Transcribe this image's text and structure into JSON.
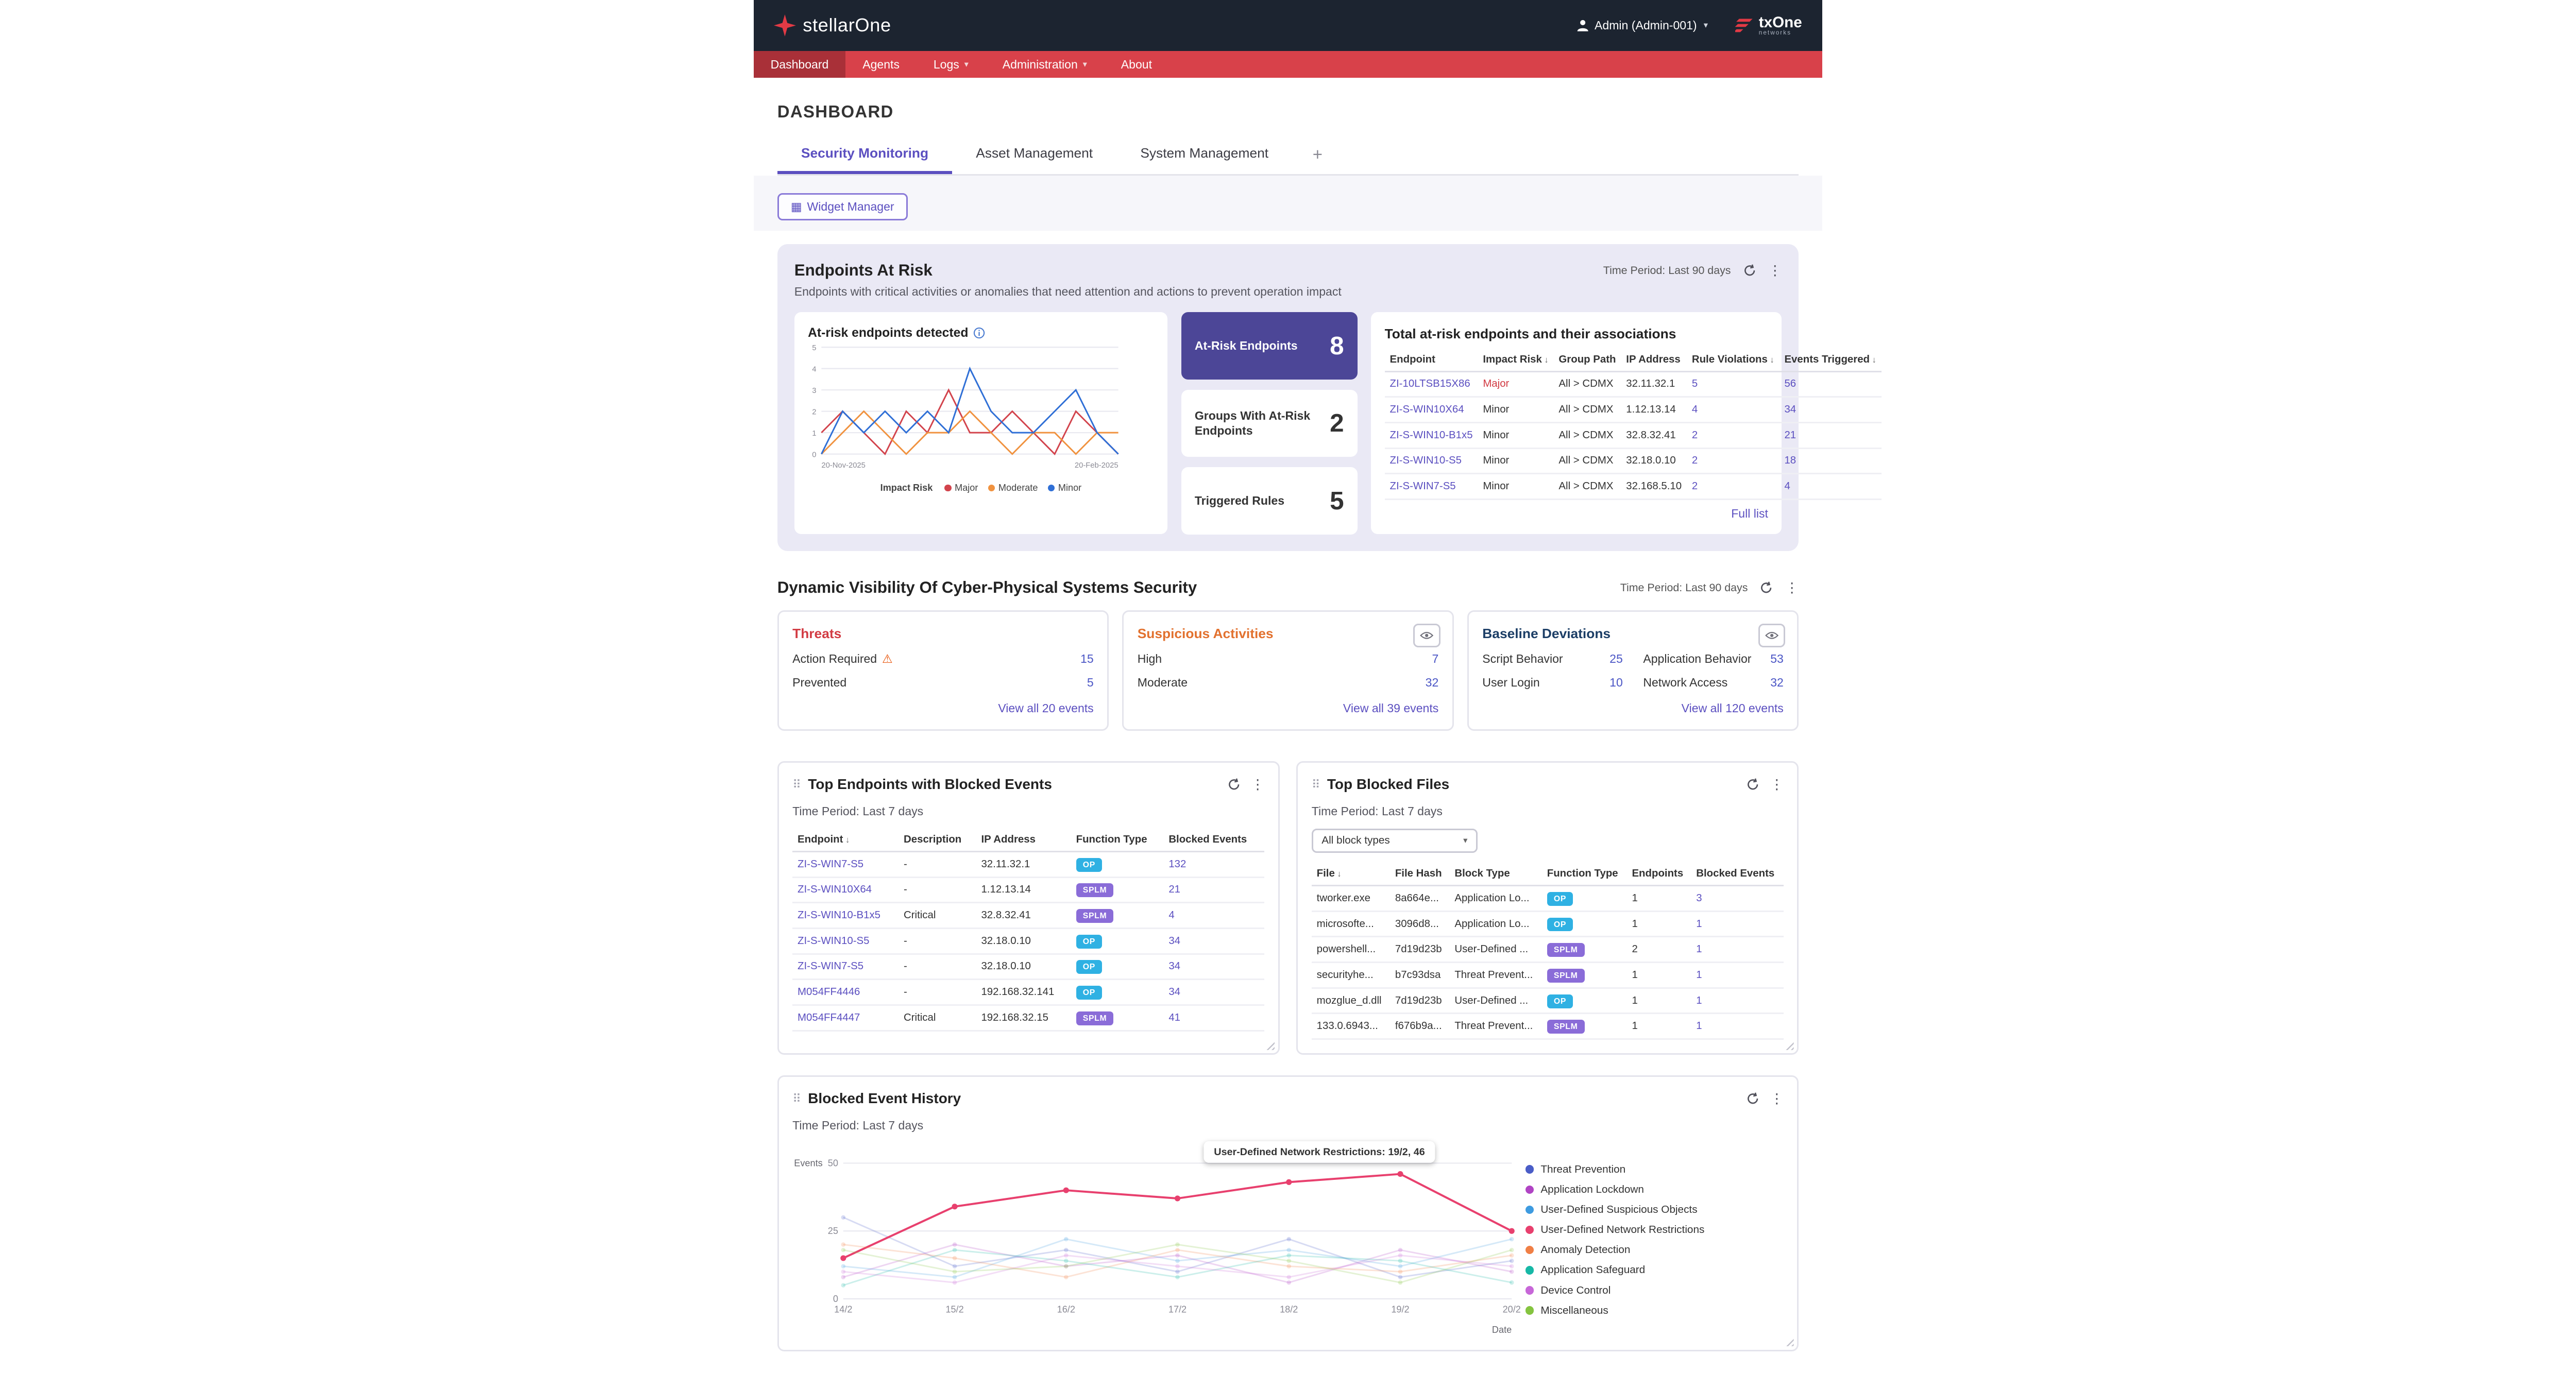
{
  "topbar": {
    "brand": "stellarOne",
    "user_label": "Admin (Admin-001)",
    "vendor_name": "txOne",
    "vendor_sub": "networks"
  },
  "nav": {
    "items": [
      {
        "label": "Dashboard",
        "active": true,
        "dropdown": false
      },
      {
        "label": "Agents",
        "active": false,
        "dropdown": false
      },
      {
        "label": "Logs",
        "active": false,
        "dropdown": true
      },
      {
        "label": "Administration",
        "active": false,
        "dropdown": true
      },
      {
        "label": "About",
        "active": false,
        "dropdown": false
      }
    ]
  },
  "page": {
    "title": "DASHBOARD"
  },
  "tabs": {
    "items": [
      {
        "label": "Security Monitoring",
        "active": true
      },
      {
        "label": "Asset Management",
        "active": false
      },
      {
        "label": "System Management",
        "active": false
      }
    ],
    "add_label": "+"
  },
  "toolbar": {
    "widget_manager_label": "Widget Manager"
  },
  "endpoints_at_risk": {
    "title": "Endpoints At Risk",
    "subtitle": "Endpoints with critical activities or anomalies that need attention and actions to prevent operation impact",
    "time_period": "Time Period: Last 90 days",
    "detected_title": "At-risk endpoints detected",
    "stats": [
      {
        "label": "At-Risk Endpoints",
        "value": "8",
        "active": true
      },
      {
        "label": "Groups With At-Risk Endpoints",
        "value": "2",
        "active": false
      },
      {
        "label": "Triggered Rules",
        "value": "5",
        "active": false
      }
    ],
    "associations": {
      "title": "Total at-risk endpoints and their associations",
      "columns": [
        "Endpoint",
        "Impact Risk",
        "Group Path",
        "IP Address",
        "Rule Violations",
        "Events Triggered"
      ],
      "sorted_column_indexes": [
        1,
        4,
        5
      ],
      "rows": [
        {
          "endpoint": "ZI-10LTSB15X86",
          "impact_risk": "Major",
          "group_path": "All > CDMX",
          "ip": "32.11.32.1",
          "rule_violations": "5",
          "events_triggered": "56"
        },
        {
          "endpoint": "ZI-S-WIN10X64",
          "impact_risk": "Minor",
          "group_path": "All > CDMX",
          "ip": "1.12.13.14",
          "rule_violations": "4",
          "events_triggered": "34"
        },
        {
          "endpoint": "ZI-S-WIN10-B1x5",
          "impact_risk": "Minor",
          "group_path": "All > CDMX",
          "ip": "32.8.32.41",
          "rule_violations": "2",
          "events_triggered": "21"
        },
        {
          "endpoint": "ZI-S-WIN10-S5",
          "impact_risk": "Minor",
          "group_path": "All > CDMX",
          "ip": "32.18.0.10",
          "rule_violations": "2",
          "events_triggered": "18"
        },
        {
          "endpoint": "ZI-S-WIN7-S5",
          "impact_risk": "Minor",
          "group_path": "All > CDMX",
          "ip": "32.168.5.10",
          "rule_violations": "2",
          "events_triggered": "4"
        }
      ],
      "full_list_label": "Full list"
    }
  },
  "dynamic_visibility": {
    "title": "Dynamic Visibility Of Cyber-Physical Systems Security",
    "time_period": "Time Period: Last 90 days",
    "threats": {
      "title": "Threats",
      "rows": [
        {
          "label": "Action Required",
          "value": "15",
          "warning": true
        },
        {
          "label": "Prevented",
          "value": "5",
          "warning": false
        }
      ],
      "view_all_label": "View all 20 events"
    },
    "suspicious": {
      "title": "Suspicious Activities",
      "rows": [
        {
          "label": "High",
          "value": "7",
          "warning": false
        },
        {
          "label": "Moderate",
          "value": "32",
          "warning": false
        }
      ],
      "view_all_label": "View all 39 events"
    },
    "baseline": {
      "title": "Baseline Deviations",
      "rows": [
        {
          "label": "Script Behavior",
          "value": "25",
          "warning": false
        },
        {
          "label": "Application Behavior",
          "value": "53",
          "warning": false
        },
        {
          "label": "User Login",
          "value": "10",
          "warning": false
        },
        {
          "label": "Network Access",
          "value": "32",
          "warning": false
        }
      ],
      "view_all_label": "View all 120 events"
    }
  },
  "top_endpoints": {
    "title": "Top Endpoints with Blocked Events",
    "time_period": "Time Period: Last 7 days",
    "columns": [
      "Endpoint",
      "Description",
      "IP Address",
      "Function Type",
      "Blocked Events"
    ],
    "sorted_column_indexes": [
      0
    ],
    "rows": [
      {
        "endpoint": "ZI-S-WIN7-S5",
        "description": "-",
        "ip": "32.11.32.1",
        "function_type": "OP",
        "blocked_events": "132"
      },
      {
        "endpoint": "ZI-S-WIN10X64",
        "description": "-",
        "ip": "1.12.13.14",
        "function_type": "SPLM",
        "blocked_events": "21"
      },
      {
        "endpoint": "ZI-S-WIN10-B1x5",
        "description": "Critical",
        "ip": "32.8.32.41",
        "function_type": "SPLM",
        "blocked_events": "4"
      },
      {
        "endpoint": "ZI-S-WIN10-S5",
        "description": "-",
        "ip": "32.18.0.10",
        "function_type": "OP",
        "blocked_events": "34"
      },
      {
        "endpoint": "ZI-S-WIN7-S5",
        "description": "-",
        "ip": "32.18.0.10",
        "function_type": "OP",
        "blocked_events": "34"
      },
      {
        "endpoint": "M054FF4446",
        "description": "-",
        "ip": "192.168.32.141",
        "function_type": "OP",
        "blocked_events": "34"
      },
      {
        "endpoint": "M054FF4447",
        "description": "Critical",
        "ip": "192.168.32.15",
        "function_type": "SPLM",
        "blocked_events": "41"
      }
    ]
  },
  "top_blocked_files": {
    "title": "Top Blocked Files",
    "time_period": "Time Period: Last 7 days",
    "filter_value": "All block types",
    "columns": [
      "File",
      "File Hash",
      "Block Type",
      "Function Type",
      "Endpoints",
      "Blocked Events"
    ],
    "sorted_column_indexes": [
      0
    ],
    "rows": [
      {
        "file": "tworker.exe",
        "hash": "8a664e...",
        "block_type": "Application Lo...",
        "function_type": "OP",
        "endpoints": "1",
        "blocked_events": "3"
      },
      {
        "file": "microsofte...",
        "hash": "3096d8...",
        "block_type": "Application Lo...",
        "function_type": "OP",
        "endpoints": "1",
        "blocked_events": "1"
      },
      {
        "file": "powershell...",
        "hash": "7d19d23b",
        "block_type": "User-Defined ...",
        "function_type": "SPLM",
        "endpoints": "2",
        "blocked_events": "1"
      },
      {
        "file": "securityhe...",
        "hash": "b7c93dsa",
        "block_type": "Threat Prevent...",
        "function_type": "SPLM",
        "endpoints": "1",
        "blocked_events": "1"
      },
      {
        "file": "mozglue_d.dll",
        "hash": "7d19d23b",
        "block_type": "User-Defined ...",
        "function_type": "OP",
        "endpoints": "1",
        "blocked_events": "1"
      },
      {
        "file": "133.0.6943...",
        "hash": "f676b9a...",
        "block_type": "Threat Prevent...",
        "function_type": "SPLM",
        "endpoints": "1",
        "blocked_events": "1"
      }
    ]
  },
  "blocked_event_history": {
    "title": "Blocked Event History",
    "time_period": "Time Period: Last 7 days",
    "tooltip_text": "User-Defined Network Restrictions: 19/2, 46"
  },
  "chart_data": [
    {
      "type": "line",
      "title": "At-risk endpoints detected",
      "legend_title": "Impact Risk",
      "x_end_labels": [
        "20-Nov-2025",
        "20-Feb-2025"
      ],
      "ylim": [
        0,
        5
      ],
      "yticks": [
        0,
        1,
        2,
        3,
        4,
        5
      ],
      "grid": true,
      "series": [
        {
          "name": "Major",
          "color": "#d2434c",
          "values": [
            1,
            2,
            1,
            0,
            2,
            1,
            3,
            1,
            1,
            2,
            1,
            0,
            2,
            1,
            0
          ]
        },
        {
          "name": "Moderate",
          "color": "#f0923f",
          "values": [
            0,
            1,
            2,
            1,
            0,
            1,
            1,
            2,
            1,
            0,
            1,
            1,
            0,
            1,
            1
          ]
        },
        {
          "name": "Minor",
          "color": "#2f6fd6",
          "values": [
            0,
            2,
            1,
            2,
            1,
            2,
            1,
            4,
            2,
            1,
            1,
            2,
            3,
            1,
            0
          ]
        }
      ]
    },
    {
      "type": "line",
      "title": "Blocked Event History",
      "ylabel": "Events",
      "xlabel": "Date",
      "x": [
        "14/2",
        "15/2",
        "16/2",
        "17/2",
        "18/2",
        "19/2",
        "20/2"
      ],
      "ylim": [
        0,
        50
      ],
      "yticks": [
        0,
        25,
        50
      ],
      "grid": true,
      "legend_position": "right",
      "highlight_series": "User-Defined Network Restrictions",
      "tooltip": {
        "series": "User-Defined Network Restrictions",
        "x_index": 5,
        "x_label": "19/2",
        "value": 46
      },
      "series": [
        {
          "name": "Threat Prevention",
          "color": "#4a5dc7",
          "values": [
            30,
            12,
            18,
            10,
            22,
            8,
            14
          ]
        },
        {
          "name": "Application Lockdown",
          "color": "#b044c4",
          "values": [
            8,
            20,
            12,
            16,
            6,
            18,
            10
          ]
        },
        {
          "name": "User-Defined Suspicious Objects",
          "color": "#3e9be0",
          "values": [
            12,
            8,
            22,
            14,
            18,
            12,
            22
          ]
        },
        {
          "name": "User-Defined Network Restrictions",
          "color": "#e8406e",
          "values": [
            15,
            34,
            40,
            37,
            43,
            46,
            25
          ]
        },
        {
          "name": "Anomaly Detection",
          "color": "#f07f45",
          "values": [
            20,
            15,
            8,
            18,
            12,
            10,
            16
          ]
        },
        {
          "name": "Application Safeguard",
          "color": "#17b8a6",
          "values": [
            5,
            18,
            14,
            8,
            16,
            14,
            6
          ]
        },
        {
          "name": "Device Control",
          "color": "#c767d8",
          "values": [
            10,
            6,
            16,
            12,
            8,
            16,
            12
          ]
        },
        {
          "name": "Miscellaneous",
          "color": "#85c440",
          "values": [
            18,
            10,
            12,
            20,
            14,
            6,
            18
          ]
        }
      ]
    }
  ]
}
